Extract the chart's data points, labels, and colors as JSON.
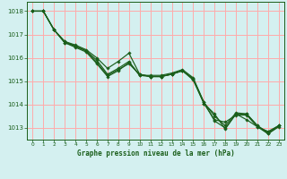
{
  "title": "Graphe pression niveau de la mer (hPa)",
  "background_color": "#d4f0f0",
  "grid_color": "#ffaaaa",
  "line_color": "#1a5e1a",
  "marker_color": "#1a5e1a",
  "xlim": [
    -0.5,
    23.5
  ],
  "ylim": [
    1012.5,
    1018.4
  ],
  "yticks": [
    1013,
    1014,
    1015,
    1016,
    1017,
    1018
  ],
  "xticks": [
    0,
    1,
    2,
    3,
    4,
    5,
    6,
    7,
    8,
    9,
    10,
    11,
    12,
    13,
    14,
    15,
    16,
    17,
    18,
    19,
    20,
    21,
    22,
    23
  ],
  "series": [
    [
      1018.0,
      1018.0,
      1017.2,
      1016.65,
      1016.45,
      1016.25,
      1015.75,
      1015.2,
      1015.45,
      1015.8,
      1015.25,
      1015.2,
      1015.2,
      1015.3,
      1015.45,
      1015.05,
      1014.05,
      1013.35,
      1013.25,
      1013.55,
      1013.55,
      1013.05,
      1012.85,
      1013.1
    ],
    [
      1018.0,
      1018.0,
      1017.2,
      1016.65,
      1016.5,
      1016.3,
      1015.8,
      1015.25,
      1015.5,
      1015.75,
      1015.3,
      1015.2,
      1015.2,
      1015.3,
      1015.45,
      1015.1,
      1014.1,
      1013.3,
      1013.0,
      1013.6,
      1013.35,
      1013.05,
      1012.75,
      1013.1
    ],
    [
      1018.0,
      1018.0,
      1017.2,
      1016.7,
      1016.55,
      1016.35,
      1016.0,
      1015.55,
      1015.85,
      1016.2,
      1015.3,
      1015.2,
      1015.2,
      1015.3,
      1015.45,
      1015.1,
      1014.05,
      1013.6,
      1012.95,
      1013.6,
      1013.6,
      1013.1,
      1012.75,
      1013.05
    ],
    [
      1018.0,
      1018.0,
      1017.2,
      1016.7,
      1016.5,
      1016.3,
      1015.9,
      1015.3,
      1015.55,
      1015.85,
      1015.25,
      1015.25,
      1015.25,
      1015.35,
      1015.5,
      1015.15,
      1014.1,
      1013.5,
      1013.1,
      1013.65,
      1013.6,
      1013.1,
      1012.8,
      1013.1
    ]
  ]
}
